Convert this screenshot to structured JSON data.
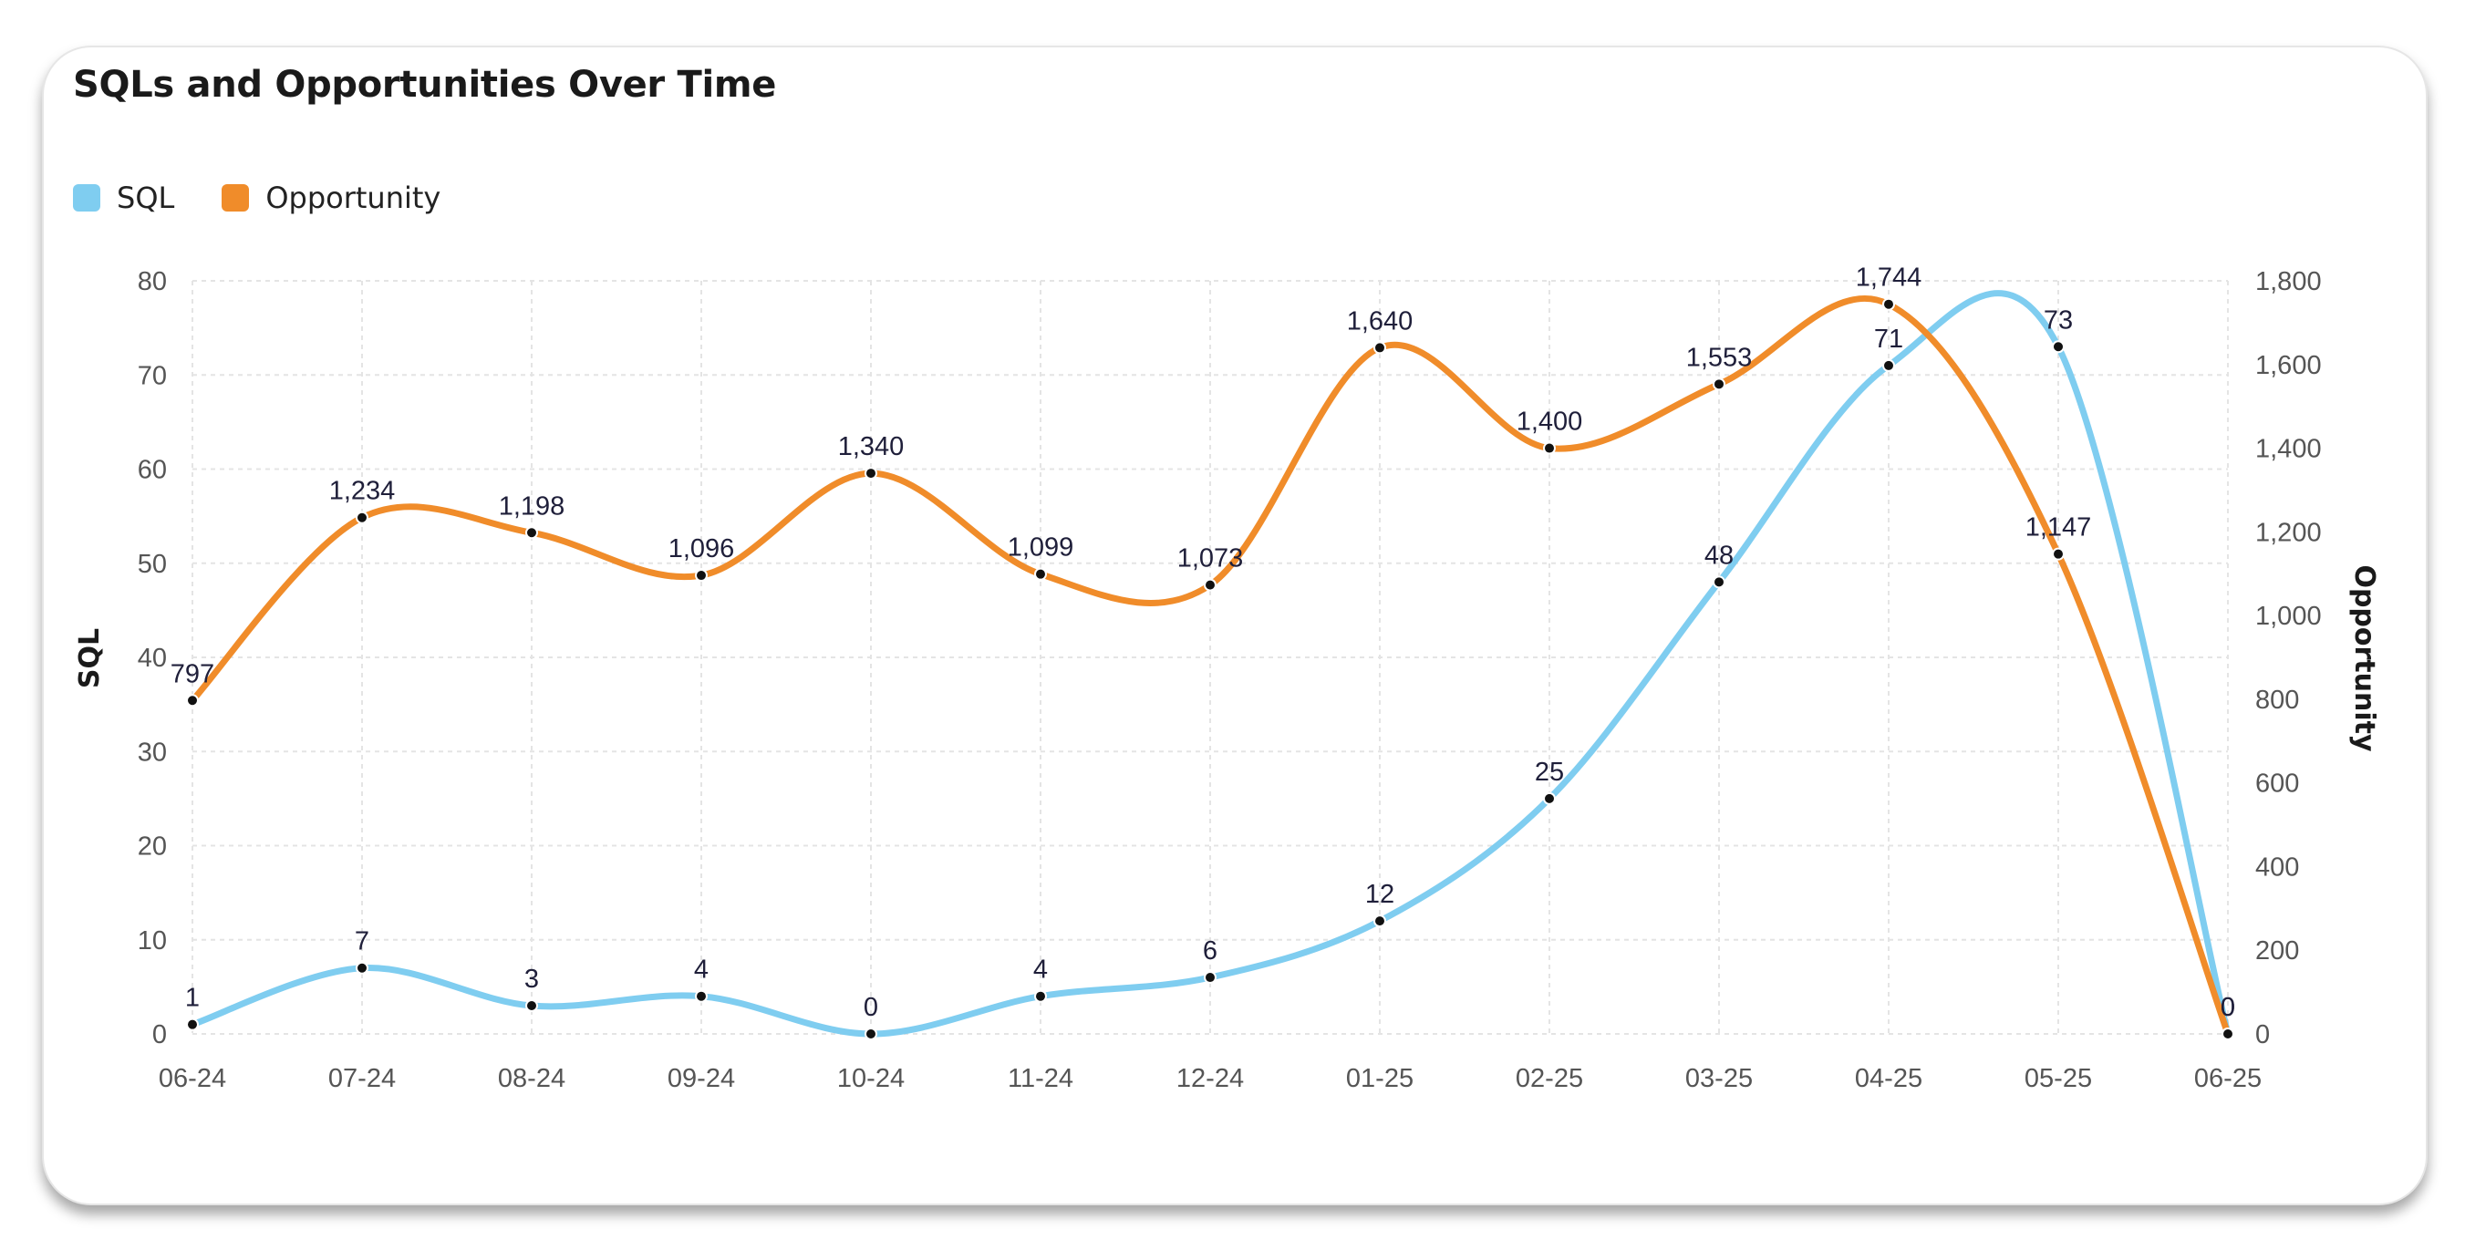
{
  "title": "SQLs and Opportunities Over Time",
  "colors": {
    "sql": "#7fcdf0",
    "opportunity": "#f08c2a",
    "grid": "#e4e4e4",
    "point": "#111111"
  },
  "chart_data": {
    "type": "line",
    "title": "SQLs and Opportunities Over Time",
    "x": [
      "06-24",
      "07-24",
      "08-24",
      "09-24",
      "10-24",
      "11-24",
      "12-24",
      "01-25",
      "02-25",
      "03-25",
      "04-25",
      "05-25",
      "06-25"
    ],
    "series": [
      {
        "name": "SQL",
        "axis": "left",
        "values": [
          1,
          7,
          3,
          4,
          0,
          4,
          6,
          12,
          25,
          48,
          71,
          73,
          0
        ],
        "labels": [
          "1",
          "7",
          "3",
          "4",
          "0",
          "4",
          "6",
          "12",
          "25",
          "48",
          "71",
          "73",
          "0"
        ]
      },
      {
        "name": "Opportunity",
        "axis": "right",
        "values": [
          797,
          1234,
          1198,
          1096,
          1340,
          1099,
          1073,
          1640,
          1400,
          1553,
          1744,
          1147,
          0
        ],
        "labels": [
          "797",
          "1,234",
          "1,198",
          "1,096",
          "1,340",
          "1,099",
          "1,073",
          "1,640",
          "1,400",
          "1,553",
          "1,744",
          "1,147",
          "0"
        ]
      }
    ],
    "ylabel": "SQL",
    "y2label": "Opportunity",
    "ylim": [
      0,
      80
    ],
    "y2lim": [
      0,
      1800
    ],
    "yticks": [
      "0",
      "10",
      "20",
      "30",
      "40",
      "50",
      "60",
      "70",
      "80"
    ],
    "y2ticks": [
      "0",
      "200",
      "400",
      "600",
      "800",
      "1,000",
      "1,200",
      "1,400",
      "1,600",
      "1,800"
    ],
    "grid": true,
    "legend": "top-left",
    "smooth": true
  }
}
